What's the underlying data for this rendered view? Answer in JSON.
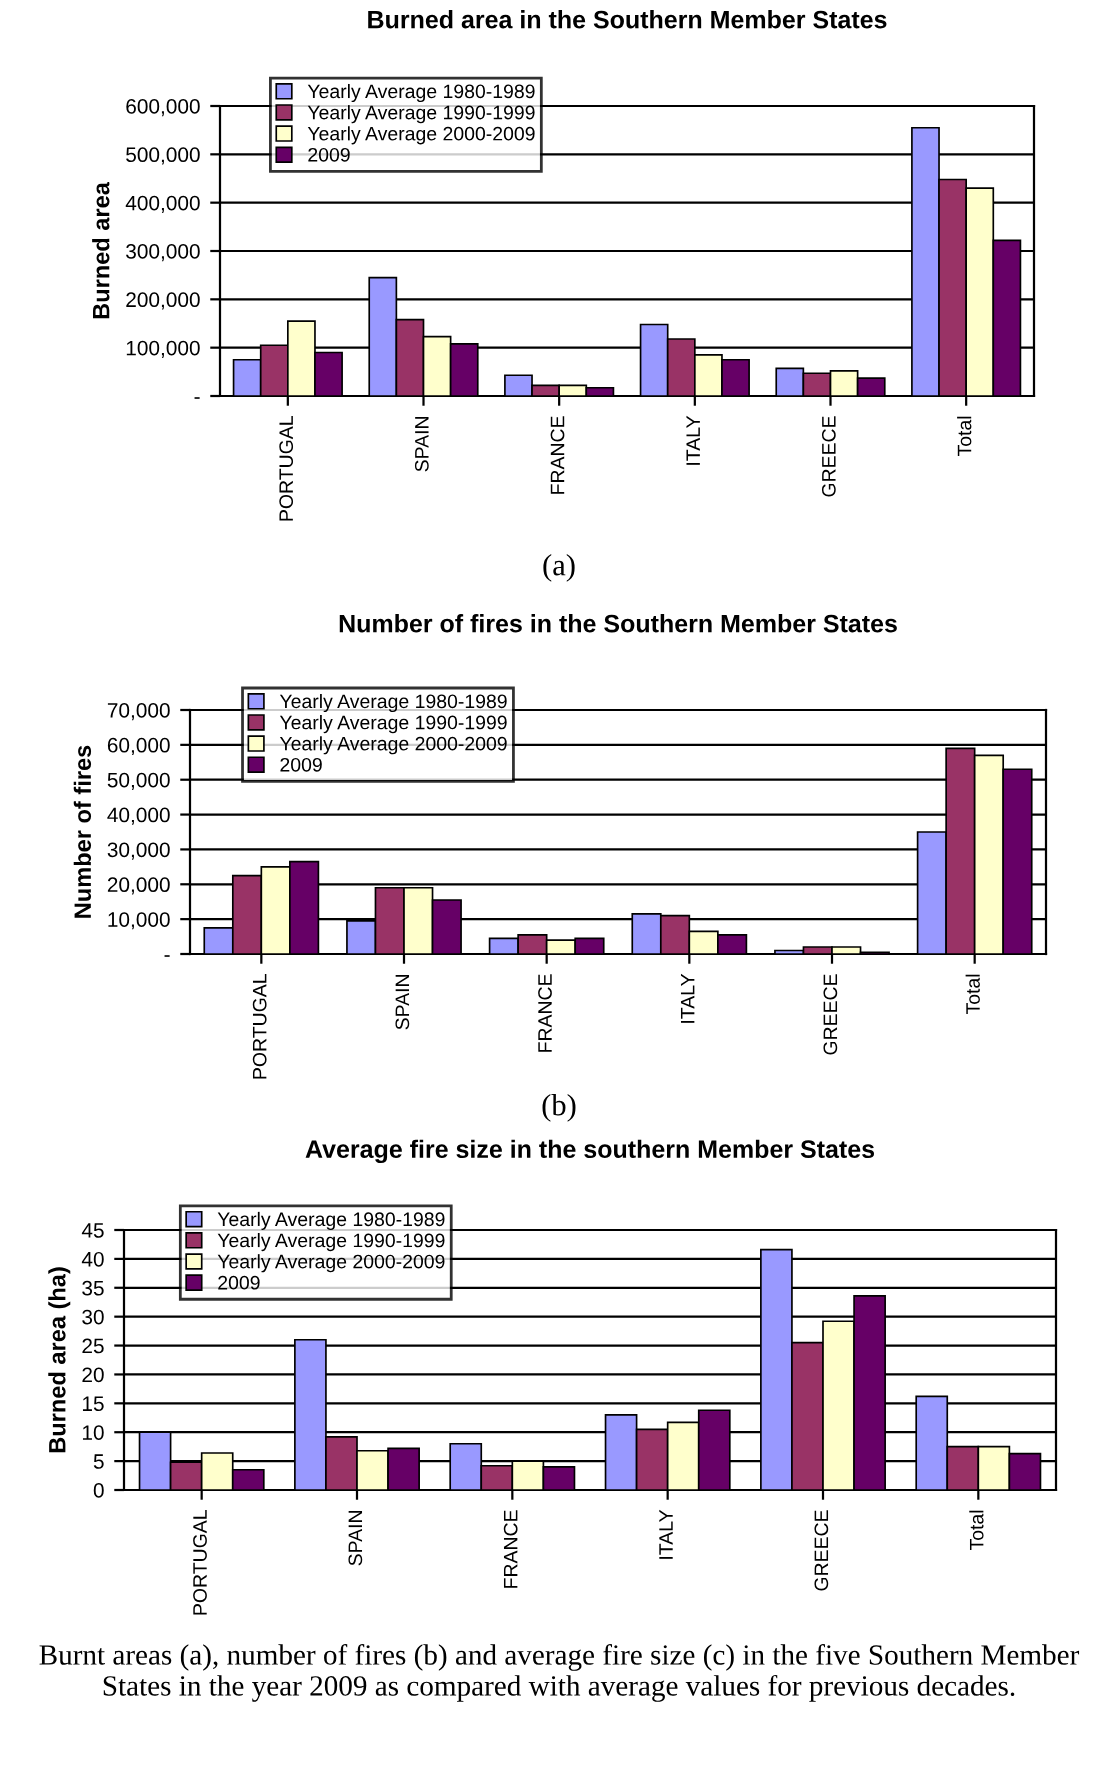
{
  "chart_data": [
    {
      "type": "bar",
      "title": "Burned area in the Southern Member States",
      "ylabel": "Burned area",
      "categories": [
        "PORTUGAL",
        "SPAIN",
        "FRANCE",
        "ITALY",
        "GREECE",
        "Total"
      ],
      "series": [
        {
          "name": "Yearly Average 1980-1989",
          "color": "#9999ff",
          "values": [
            75000,
            245000,
            43000,
            148000,
            57000,
            555000
          ]
        },
        {
          "name": "Yearly Average 1990-1999",
          "color": "#993366",
          "values": [
            105000,
            158000,
            22000,
            118000,
            47000,
            448000
          ]
        },
        {
          "name": "Yearly Average 2000-2009",
          "color": "#ffffcc",
          "values": [
            155000,
            123000,
            22000,
            85000,
            52000,
            430000
          ]
        },
        {
          "name": "2009",
          "color": "#660066",
          "values": [
            90000,
            108000,
            17000,
            75000,
            37000,
            322000
          ]
        }
      ],
      "ylim": [
        0,
        600000
      ],
      "yticks": [
        {
          "value": 0,
          "label": "-"
        },
        {
          "value": 100000,
          "label": "100,000"
        },
        {
          "value": 200000,
          "label": "200,000"
        },
        {
          "value": 300000,
          "label": "300,000"
        },
        {
          "value": 400000,
          "label": "400,000"
        },
        {
          "value": 500000,
          "label": "500,000"
        },
        {
          "value": 600000,
          "label": "600,000"
        }
      ],
      "grid": "y",
      "legend": "top left",
      "annotations": [
        "(a)"
      ]
    },
    {
      "type": "bar",
      "title": "Number of fires in the Southern Member States",
      "ylabel": "Number of fires",
      "categories": [
        "PORTUGAL",
        "SPAIN",
        "FRANCE",
        "ITALY",
        "GREECE",
        "Total"
      ],
      "series": [
        {
          "name": "Yearly Average 1980-1989",
          "color": "#9999ff",
          "values": [
            7500,
            9500,
            4500,
            11500,
            1000,
            35000
          ]
        },
        {
          "name": "Yearly Average 1990-1999",
          "color": "#993366",
          "values": [
            22500,
            19000,
            5500,
            11000,
            2000,
            59000
          ]
        },
        {
          "name": "Yearly Average 2000-2009",
          "color": "#ffffcc",
          "values": [
            25000,
            19000,
            4000,
            6500,
            2000,
            57000
          ]
        },
        {
          "name": "2009",
          "color": "#660066",
          "values": [
            26500,
            15500,
            4500,
            5500,
            500,
            53000
          ]
        }
      ],
      "ylim": [
        0,
        70000
      ],
      "yticks": [
        {
          "value": 0,
          "label": "-"
        },
        {
          "value": 10000,
          "label": "10,000"
        },
        {
          "value": 20000,
          "label": "20,000"
        },
        {
          "value": 30000,
          "label": "30,000"
        },
        {
          "value": 40000,
          "label": "40,000"
        },
        {
          "value": 50000,
          "label": "50,000"
        },
        {
          "value": 60000,
          "label": "60,000"
        },
        {
          "value": 70000,
          "label": "70,000"
        }
      ],
      "grid": "y",
      "legend": "top left",
      "annotations": [
        "(b)"
      ]
    },
    {
      "type": "bar",
      "title": "Average fire size in the southern Member States",
      "ylabel": "Burned area (ha)",
      "categories": [
        "PORTUGAL",
        "SPAIN",
        "FRANCE",
        "ITALY",
        "GREECE",
        "Total"
      ],
      "series": [
        {
          "name": "Yearly Average 1980-1989",
          "color": "#9999ff",
          "values": [
            10,
            26,
            8,
            13,
            41.6,
            16.2
          ]
        },
        {
          "name": "Yearly Average 1990-1999",
          "color": "#993366",
          "values": [
            4.8,
            9.2,
            4.2,
            10.5,
            25.5,
            7.5
          ]
        },
        {
          "name": "Yearly Average 2000-2009",
          "color": "#ffffcc",
          "values": [
            6.4,
            6.8,
            5,
            11.7,
            29.2,
            7.5
          ]
        },
        {
          "name": "2009",
          "color": "#660066",
          "values": [
            3.5,
            7.2,
            4,
            13.8,
            33.6,
            6.3
          ]
        }
      ],
      "ylim": [
        0,
        45
      ],
      "yticks": [
        0,
        5,
        10,
        15,
        20,
        25,
        30,
        35,
        40,
        45
      ],
      "grid": "y",
      "legend": "top left",
      "annotations": [
        "Burnt areas (a), number of fires (b) and average fire size (c) in the five Southern Member States in the year 2009 as compared with average values for previous decades."
      ]
    }
  ]
}
